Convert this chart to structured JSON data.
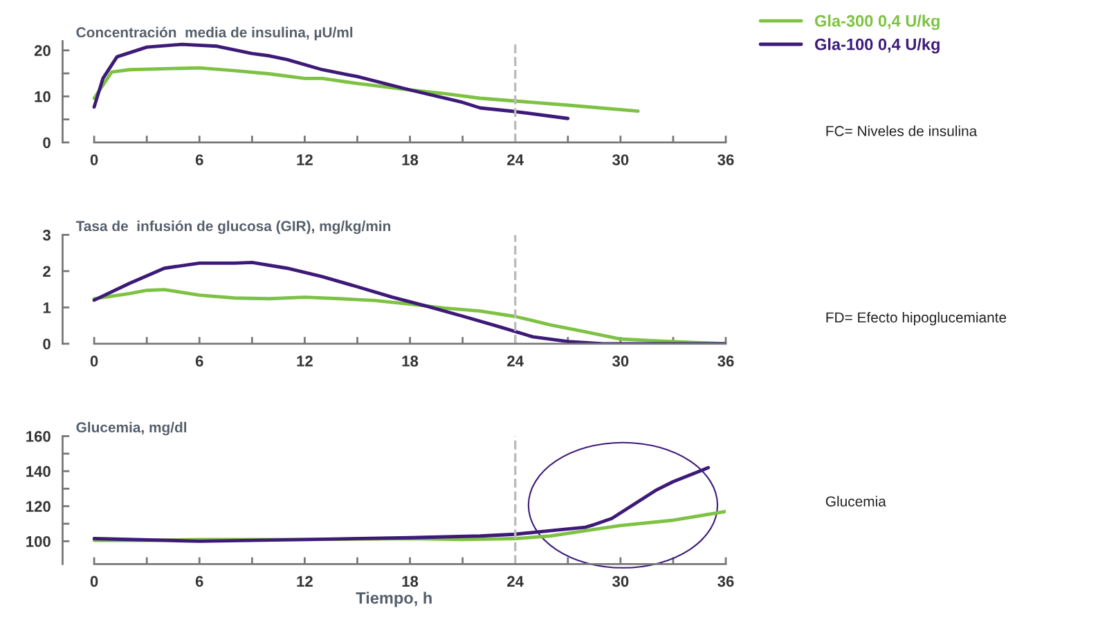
{
  "chart_data": [
    {
      "type": "line",
      "title": "Concentración  media de insulina, µU/ml",
      "xlim": [
        -1.8,
        36
      ],
      "xticks": [
        0,
        {
          "value": 3,
          "label": null
        },
        6,
        {
          "value": 9,
          "label": null
        },
        12,
        {
          "value": 15,
          "label": null
        },
        18,
        {
          "value": 21,
          "label": null
        },
        24,
        {
          "value": 27,
          "label": null
        },
        30,
        {
          "value": 33,
          "label": null
        },
        36
      ],
      "ylim": [
        0,
        22
      ],
      "yticks": [
        0,
        {
          "value": 5,
          "label": null
        },
        10,
        {
          "value": 15,
          "label": null
        },
        20
      ],
      "grid": false,
      "legend": "top right",
      "line_style": "solid",
      "marker": "none",
      "ref_lines": [
        {
          "axis": "x",
          "value": 24,
          "label": null,
          "color": "#bbbbbb",
          "line_style": "dashed"
        }
      ],
      "annotations": [
        {
          "text": "FC= Niveles de insulina"
        }
      ],
      "series": [
        {
          "name": "Gla-300 0,4 U/kg",
          "color": "#7dc242",
          "x": [
            0,
            1,
            2,
            6,
            8,
            10,
            12,
            13,
            15,
            18,
            20,
            22,
            24,
            27,
            31
          ],
          "values": [
            9.6,
            15.3,
            15.8,
            16.2,
            15.6,
            14.9,
            13.9,
            13.9,
            12.8,
            11.4,
            10.6,
            9.6,
            9.0,
            8.1,
            6.8
          ]
        },
        {
          "name": "Gla-100 0,4 U/kg",
          "color": "#3d1a78",
          "x": [
            0,
            0.5,
            1.3,
            3,
            5,
            7,
            9,
            10,
            11,
            13,
            15,
            18,
            21,
            22,
            24,
            27
          ],
          "values": [
            7.7,
            13.9,
            18.6,
            20.7,
            21.3,
            20.9,
            19.3,
            18.8,
            18.0,
            15.8,
            14.3,
            11.4,
            8.7,
            7.5,
            6.7,
            5.2
          ]
        }
      ]
    },
    {
      "type": "line",
      "title": "Tasa de  infusión de glucosa (GIR), mg/kg/min",
      "xlim": [
        -1.8,
        36
      ],
      "xticks": [
        0,
        {
          "value": 3,
          "label": null
        },
        6,
        {
          "value": 9,
          "label": null
        },
        12,
        {
          "value": 15,
          "label": null
        },
        18,
        {
          "value": 21,
          "label": null
        },
        24,
        {
          "value": 27,
          "label": null
        },
        30,
        {
          "value": 33,
          "label": null
        },
        36
      ],
      "ylim": [
        0,
        3
      ],
      "yticks": [
        0,
        1,
        2,
        3
      ],
      "grid": false,
      "line_style": "solid",
      "marker": "none",
      "ref_lines": [
        {
          "axis": "x",
          "value": 24,
          "label": null,
          "color": "#bbbbbb",
          "line_style": "dashed"
        }
      ],
      "annotations": [
        {
          "text": "FD= Efecto hipoglucemiante"
        }
      ],
      "series": [
        {
          "color": "#7dc242",
          "x": [
            0,
            2,
            3,
            4,
            6,
            8,
            10,
            12,
            14,
            16,
            18,
            20,
            22,
            24,
            26,
            28,
            30,
            32,
            36
          ],
          "values": [
            1.24,
            1.38,
            1.47,
            1.49,
            1.34,
            1.26,
            1.24,
            1.28,
            1.24,
            1.19,
            1.09,
            0.98,
            0.9,
            0.75,
            0.52,
            0.33,
            0.13,
            0.08,
            0
          ]
        },
        {
          "color": "#3d1a78",
          "x": [
            0,
            2,
            4,
            6,
            8,
            9,
            11,
            13,
            15,
            17,
            19,
            21,
            23,
            25,
            27,
            29,
            36
          ],
          "values": [
            1.2,
            1.66,
            2.08,
            2.22,
            2.22,
            2.24,
            2.08,
            1.85,
            1.57,
            1.28,
            1.03,
            0.76,
            0.48,
            0.19,
            0.06,
            0,
            0
          ]
        }
      ]
    },
    {
      "type": "line",
      "title": "Glucemia, mg/dl",
      "xlabel": "Tiempo, h",
      "xlim": [
        -1.8,
        36
      ],
      "xticks": [
        0,
        {
          "value": 3,
          "label": null
        },
        6,
        {
          "value": 9,
          "label": null
        },
        12,
        {
          "value": 15,
          "label": null
        },
        18,
        {
          "value": 21,
          "label": null
        },
        24,
        {
          "value": 27,
          "label": null
        },
        30,
        {
          "value": 33,
          "label": null
        },
        36
      ],
      "ylim": [
        87,
        160
      ],
      "yticks": [
        100,
        {
          "value": 110,
          "label": null
        },
        120,
        {
          "value": 130,
          "label": null
        },
        140,
        {
          "value": 150,
          "label": null
        },
        160
      ],
      "grid": false,
      "line_style": "solid",
      "marker": "none",
      "ref_lines": [
        {
          "axis": "x",
          "value": 24,
          "label": null,
          "color": "#bbbbbb",
          "line_style": "dashed"
        }
      ],
      "annotations": [
        {
          "text": "Glucemia"
        }
      ],
      "series": [
        {
          "color": "#7dc242",
          "x": [
            0,
            3,
            6,
            9,
            12,
            18,
            21,
            24,
            26,
            28,
            30,
            33,
            36
          ],
          "values": [
            100.5,
            100.5,
            101,
            101,
            101,
            101.5,
            101,
            101.5,
            103,
            106,
            109,
            112,
            117
          ]
        },
        {
          "color": "#3d1a78",
          "x": [
            0,
            6,
            12,
            18,
            22,
            24,
            26,
            28,
            28.5,
            29.5,
            32,
            33,
            35
          ],
          "values": [
            101.5,
            100,
            101,
            102,
            103,
            104,
            106,
            108,
            109.5,
            113,
            129,
            134,
            142
          ]
        }
      ]
    }
  ]
}
